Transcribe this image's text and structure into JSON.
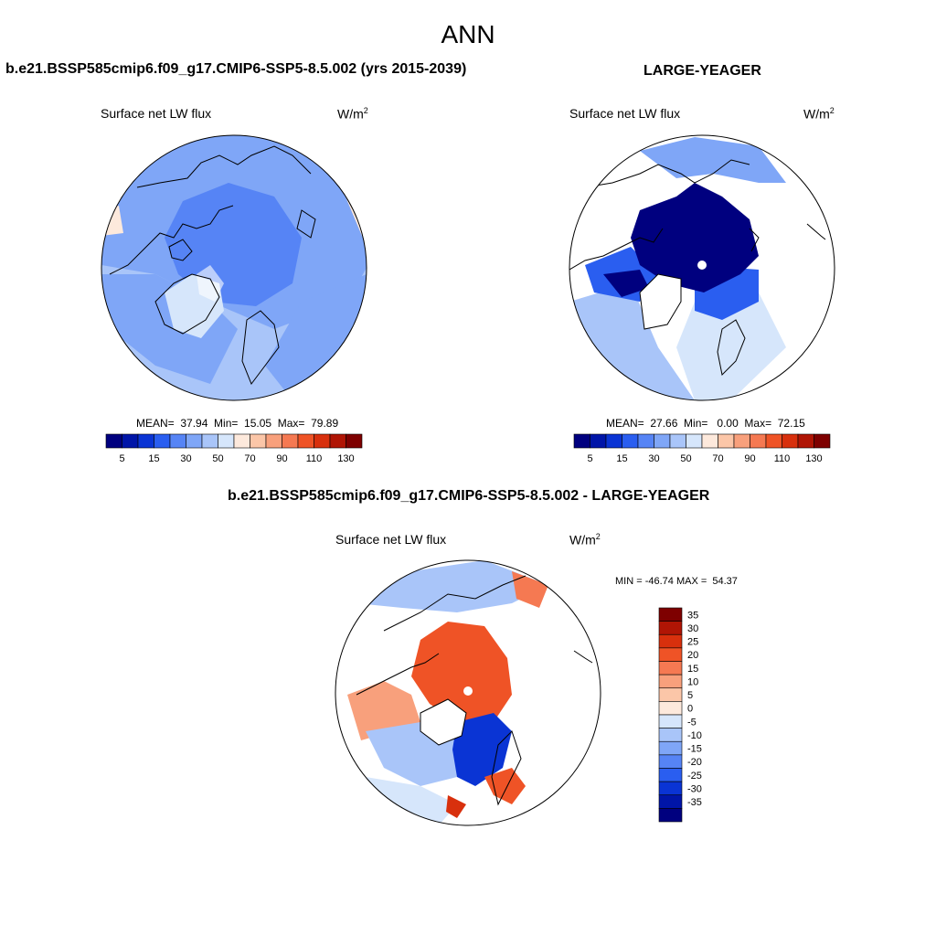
{
  "title": "ANN",
  "colors": {
    "land": "#ffffff",
    "coast": "#000000",
    "ocean_outline": "#000000"
  },
  "panels": {
    "left": {
      "header": "b.e21.BSSP585cmip6.f09_g17.CMIP6-SSP5-8.5.002 (yrs 2015-2039)",
      "variable": "Surface net LW flux",
      "unit": "W/m",
      "unit_sup": "2",
      "stats": "MEAN=  37.94  Min=  15.05  Max=  79.89"
    },
    "right": {
      "header": "LARGE-YEAGER",
      "variable": "Surface net LW flux",
      "unit": "W/m",
      "unit_sup": "2",
      "stats": "MEAN=  27.66  Min=   0.00  Max=  72.15"
    },
    "diff": {
      "header": "b.e21.BSSP585cmip6.f09_g17.CMIP6-SSP5-8.5.002 - LARGE-YEAGER",
      "variable": "Surface net LW flux",
      "unit": "W/m",
      "unit_sup": "2",
      "stats": "MIN = -46.74 MAX =  54.37"
    }
  },
  "colorbar_abs": {
    "colors": [
      "#00007f",
      "#0015a8",
      "#0a34d4",
      "#2a5ef0",
      "#5684f5",
      "#7fa6f7",
      "#a9c5f9",
      "#d6e6fb",
      "#fde9dc",
      "#fbc6a8",
      "#f8a07c",
      "#f57952",
      "#ef5326",
      "#d8300d",
      "#b01505",
      "#7e0000"
    ],
    "ticks": [
      "5",
      "15",
      "30",
      "50",
      "70",
      "90",
      "110",
      "130"
    ]
  },
  "colorbar_diff": {
    "colors": [
      "#00007f",
      "#0015a8",
      "#0a34d4",
      "#2a5ef0",
      "#5684f5",
      "#7fa6f7",
      "#a9c5f9",
      "#d6e6fb",
      "#fde9dc",
      "#fbc6a8",
      "#f8a07c",
      "#f57952",
      "#ef5326",
      "#d8300d",
      "#b01505",
      "#7e0000"
    ],
    "ticks": [
      "35",
      "30",
      "25",
      "20",
      "15",
      "10",
      "5",
      "0",
      "-5",
      "-10",
      "-15",
      "-20",
      "-25",
      "-30",
      "-35"
    ]
  }
}
